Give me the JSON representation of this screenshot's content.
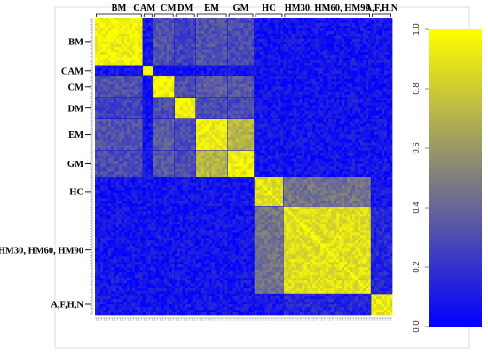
{
  "chart_data": {
    "type": "heatmap",
    "title": "",
    "xlabel": "",
    "ylabel": "",
    "value_range": [
      0.0,
      1.0
    ],
    "colorbar": {
      "ticks": [
        "0.0",
        "0.2",
        "0.4",
        "0.6",
        "0.8",
        "1.0"
      ],
      "tick_values": [
        0.0,
        0.2,
        0.4,
        0.6,
        0.8,
        1.0
      ],
      "colors": [
        "#0000ff",
        "#7f7f7f",
        "#ffff00"
      ],
      "placement": "right"
    },
    "groups": [
      {
        "label": "BM",
        "n": 18
      },
      {
        "label": "CAM",
        "n": 4
      },
      {
        "label": "CM",
        "n": 8
      },
      {
        "label": "DM",
        "n": 8
      },
      {
        "label": "EM",
        "n": 12
      },
      {
        "label": "GM",
        "n": 10
      },
      {
        "label": "HC",
        "n": 11
      },
      {
        "label": "HM30, HM60, HM90",
        "n": 33
      },
      {
        "label": "A,F,H,N",
        "n": 8
      }
    ],
    "top_labels": [
      {
        "text": "BM",
        "group": 0
      },
      {
        "text": "CAM",
        "group": 1
      },
      {
        "text": "CM",
        "group": 2
      },
      {
        "text": "DM",
        "group": 3
      },
      {
        "text": "EM",
        "group": 4
      },
      {
        "text": "GM",
        "group": 5
      },
      {
        "text": "HC",
        "group": 6
      },
      {
        "text": "HM30, HM60, HM90",
        "group": 7
      },
      {
        "text": "A,F,H,N",
        "group": 8
      }
    ],
    "within_group_similarity": [
      0.95,
      0.95,
      0.95,
      0.97,
      0.92,
      0.92,
      0.88,
      0.88,
      0.9
    ],
    "between_group_similarity": [
      {
        "groups": [
          "EM",
          "GM"
        ],
        "value": 0.72
      },
      {
        "groups": [
          "BM",
          "CM"
        ],
        "value": 0.32
      },
      {
        "groups": [
          "BM",
          "DM"
        ],
        "value": 0.26
      },
      {
        "groups": [
          "BM",
          "EM"
        ],
        "value": 0.32
      },
      {
        "groups": [
          "BM",
          "GM"
        ],
        "value": 0.3
      },
      {
        "groups": [
          "CM",
          "DM"
        ],
        "value": 0.3
      },
      {
        "groups": [
          "CM",
          "EM"
        ],
        "value": 0.36
      },
      {
        "groups": [
          "CM",
          "GM"
        ],
        "value": 0.34
      },
      {
        "groups": [
          "DM",
          "EM"
        ],
        "value": 0.3
      },
      {
        "groups": [
          "DM",
          "GM"
        ],
        "value": 0.3
      },
      {
        "groups": [
          "HC",
          "HM30, HM60, HM90"
        ],
        "value": 0.45
      },
      {
        "groups": [
          "HM30, HM60, HM90",
          "A,F,H,N"
        ],
        "value": 0.14
      }
    ],
    "background_similarity": 0.08
  }
}
